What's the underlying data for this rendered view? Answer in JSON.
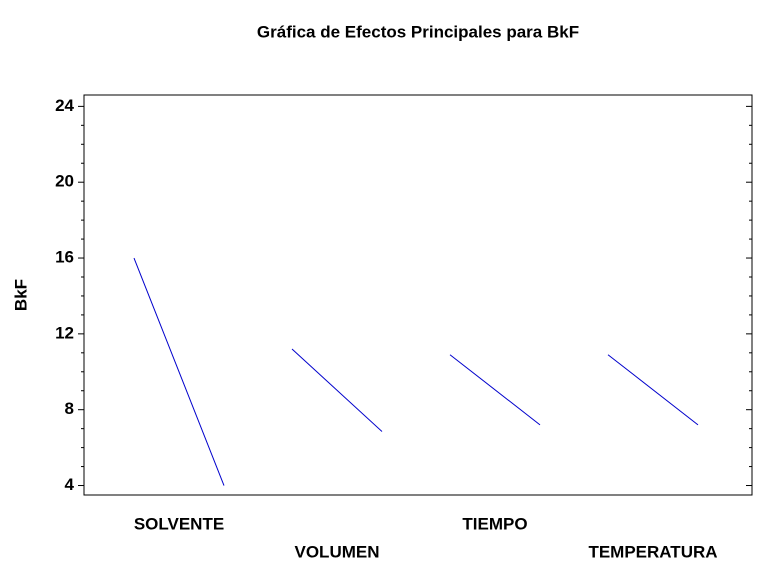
{
  "chart_data": {
    "type": "line",
    "title": "Gráfica de Efectos Principales para BkF",
    "ylabel": "BkF",
    "categories": [
      "SOLVENTE",
      "VOLUMEN",
      "TIEMPO",
      "TEMPERATURA"
    ],
    "values": [
      [
        16.0,
        4.0
      ],
      [
        11.2,
        6.85
      ],
      [
        10.9,
        7.2
      ],
      [
        10.9,
        7.2
      ]
    ],
    "color": "#0000cc",
    "ylim": [
      3.5,
      24.6
    ],
    "yticks": [
      4,
      8,
      12,
      16,
      20,
      24
    ],
    "yminorticks": [
      5,
      6,
      7,
      9,
      10,
      11,
      13,
      14,
      15,
      17,
      18,
      19,
      21,
      22,
      23
    ]
  }
}
